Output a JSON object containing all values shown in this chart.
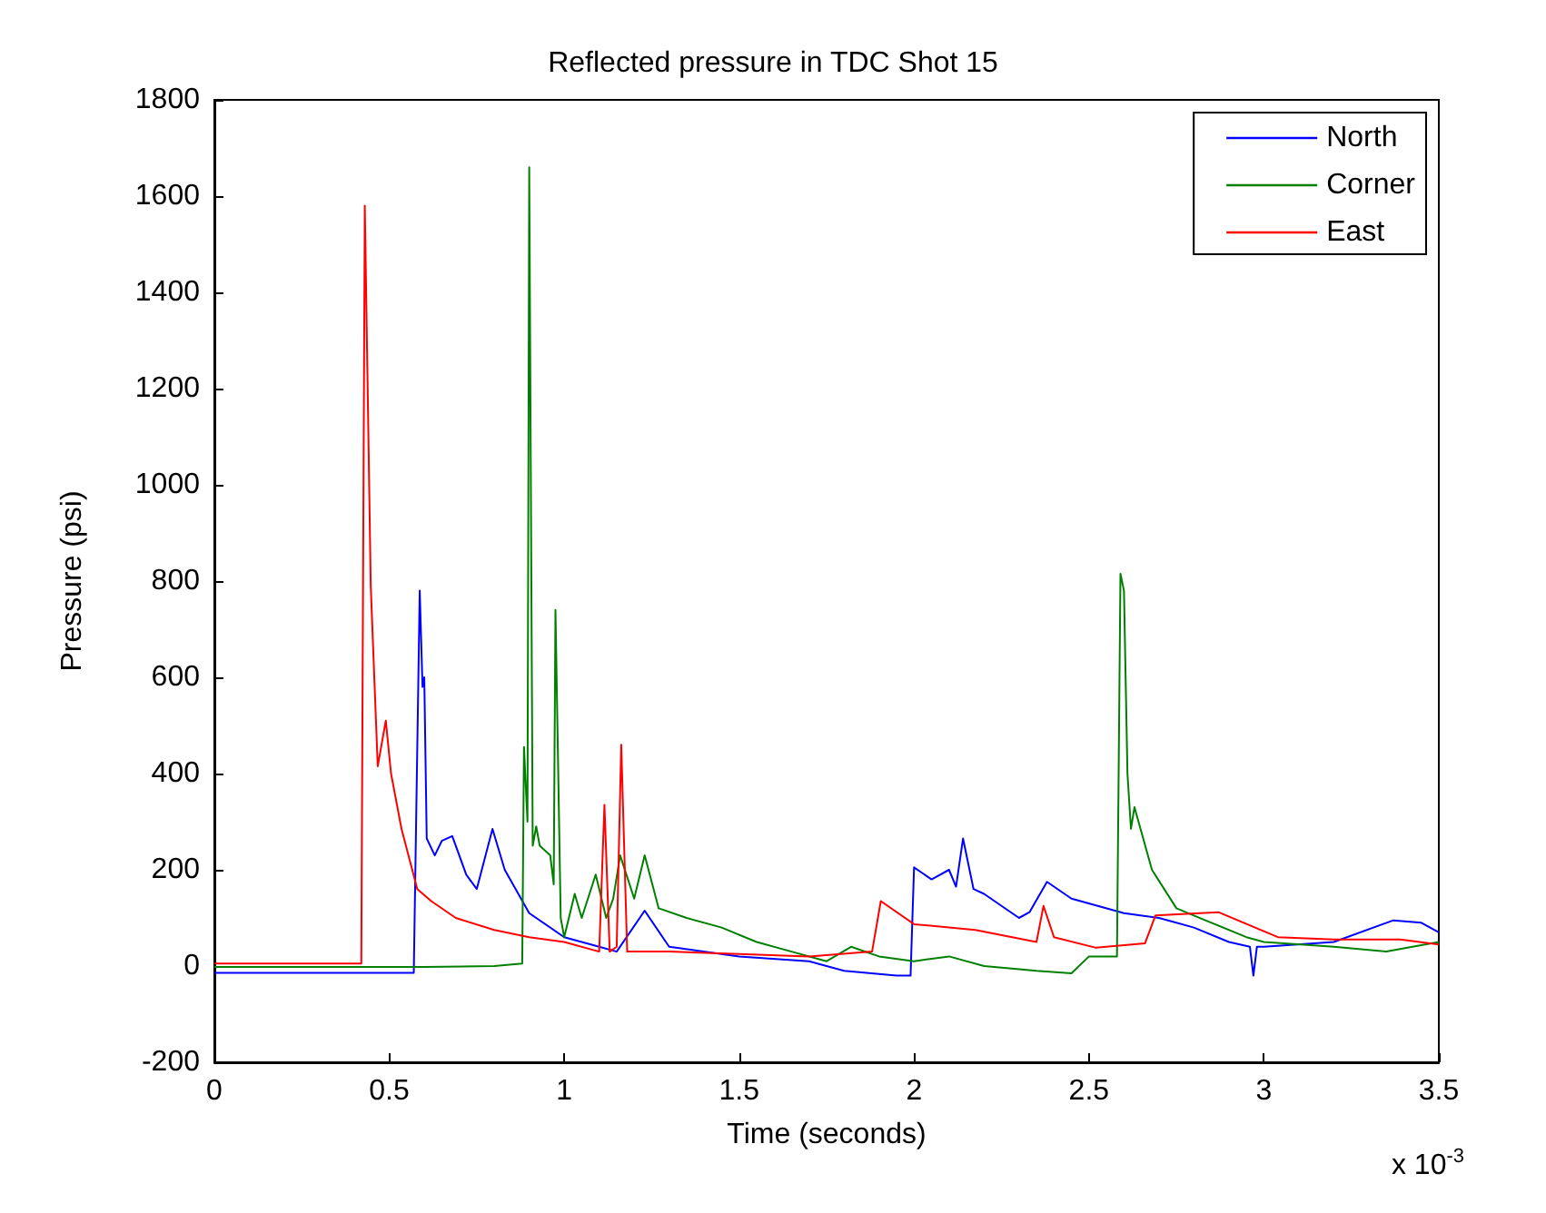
{
  "chart_data": {
    "type": "line",
    "title": "Reflected pressure in TDC Shot 15",
    "xlabel": "Time (seconds)",
    "ylabel": "Pressure (psi)",
    "annotations": [
      "x 10$^{-3}$"
    ],
    "xlim": [
      0,
      3.5
    ],
    "xticks": [
      0,
      0.5,
      1,
      1.5,
      2,
      2.5,
      3,
      3.5
    ],
    "ylim": [
      -200,
      1800
    ],
    "yticks": [
      -200,
      0,
      200,
      400,
      600,
      800,
      1000,
      1200,
      1400,
      1600,
      1800
    ],
    "grid": false,
    "legend": "top right",
    "marker": "none",
    "line_style": "solid",
    "series": [
      {
        "name": "North",
        "color": "#0000ff",
        "x": [
          0,
          0.2,
          0.4,
          0.56,
          0.57,
          0.587,
          0.595,
          0.6,
          0.607,
          0.63,
          0.65,
          0.68,
          0.72,
          0.75,
          0.795,
          0.83,
          0.9,
          1.0,
          1.1,
          1.15,
          1.23,
          1.3,
          1.5,
          1.7,
          1.8,
          1.95,
          1.99,
          2.0,
          2.05,
          2.1,
          2.12,
          2.14,
          2.17,
          2.2,
          2.3,
          2.33,
          2.38,
          2.45,
          2.6,
          2.7,
          2.8,
          2.9,
          2.96,
          2.97,
          2.98,
          3.0,
          3.2,
          3.37,
          3.45,
          3.5
        ],
        "values": [
          -14,
          -14,
          -14,
          -14,
          -14,
          780,
          580,
          600,
          265,
          230,
          260,
          270,
          190,
          160,
          285,
          200,
          110,
          60,
          40,
          30,
          115,
          40,
          20,
          10,
          -10,
          -20,
          -20,
          205,
          180,
          200,
          165,
          265,
          160,
          150,
          100,
          112,
          175,
          140,
          110,
          100,
          80,
          50,
          40,
          -20,
          40,
          40,
          50,
          95,
          90,
          70
        ]
      },
      {
        "name": "Corner",
        "color": "#008000",
        "x": [
          0,
          0.3,
          0.6,
          0.8,
          0.88,
          0.885,
          0.895,
          0.9,
          0.91,
          0.92,
          0.93,
          0.96,
          0.97,
          0.975,
          0.99,
          1.0,
          1.03,
          1.05,
          1.09,
          1.12,
          1.14,
          1.16,
          1.2,
          1.23,
          1.27,
          1.35,
          1.45,
          1.55,
          1.65,
          1.75,
          1.82,
          1.9,
          2.0,
          2.1,
          2.2,
          2.35,
          2.45,
          2.5,
          2.58,
          2.59,
          2.6,
          2.61,
          2.62,
          2.63,
          2.68,
          2.75,
          2.85,
          2.95,
          3.0,
          3.2,
          3.35,
          3.5
        ],
        "values": [
          -2,
          -2,
          -2,
          0,
          5,
          455,
          300,
          1660,
          250,
          290,
          250,
          230,
          170,
          740,
          100,
          60,
          150,
          100,
          190,
          100,
          140,
          230,
          140,
          230,
          120,
          100,
          80,
          50,
          30,
          10,
          40,
          20,
          10,
          20,
          0,
          -10,
          -15,
          20,
          20,
          815,
          780,
          400,
          285,
          330,
          200,
          120,
          90,
          60,
          50,
          40,
          30,
          50
        ]
      },
      {
        "name": "East",
        "color": "#ff0000",
        "x": [
          0,
          0.2,
          0.42,
          0.43,
          0.447,
          0.467,
          0.49,
          0.505,
          0.535,
          0.58,
          0.62,
          0.69,
          0.8,
          0.9,
          1.0,
          1.1,
          1.115,
          1.13,
          1.15,
          1.163,
          1.18,
          1.3,
          1.5,
          1.7,
          1.88,
          1.905,
          2.0,
          2.175,
          2.35,
          2.37,
          2.4,
          2.52,
          2.66,
          2.69,
          2.87,
          3.04,
          3.2,
          3.39,
          3.5
        ],
        "values": [
          5,
          5,
          5,
          1580,
          790,
          415,
          510,
          400,
          285,
          160,
          135,
          100,
          75,
          60,
          50,
          30,
          335,
          30,
          40,
          460,
          30,
          30,
          25,
          20,
          30,
          135,
          87,
          75,
          50,
          125,
          60,
          38,
          47,
          105,
          112,
          60,
          55,
          55,
          45
        ]
      }
    ]
  }
}
